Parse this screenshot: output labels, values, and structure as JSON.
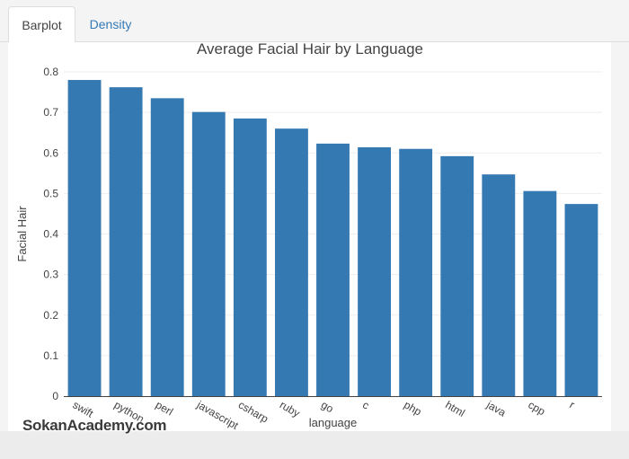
{
  "tabs": [
    {
      "label": "Barplot",
      "active": true
    },
    {
      "label": "Density",
      "active": false
    }
  ],
  "watermark": "SokanAcademy.com",
  "colors": {
    "bar": "#3579b3",
    "tab_link": "#337ab7"
  },
  "chart_data": {
    "type": "bar",
    "title": "Average Facial Hair by Language",
    "xlabel": "language",
    "ylabel": "Facial Hair",
    "categories": [
      "swift",
      "python",
      "perl",
      "javascript",
      "csharp",
      "ruby",
      "go",
      "c",
      "php",
      "html",
      "java",
      "cpp",
      "r"
    ],
    "values": [
      0.78,
      0.762,
      0.735,
      0.701,
      0.685,
      0.66,
      0.623,
      0.614,
      0.61,
      0.592,
      0.547,
      0.506,
      0.474
    ],
    "ylim": [
      0,
      0.8
    ],
    "yticks": [
      "0",
      "0.1",
      "0.2",
      "0.3",
      "0.4",
      "0.5",
      "0.6",
      "0.7",
      "0.8"
    ],
    "grid": true
  }
}
